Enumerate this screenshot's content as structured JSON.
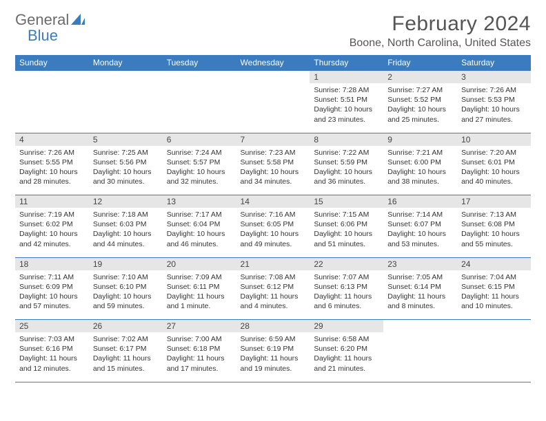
{
  "brand": {
    "part1": "General",
    "part2": "Blue"
  },
  "title": "February 2024",
  "location": "Boone, North Carolina, United States",
  "colors": {
    "header_bg": "#3a7cbf",
    "header_text": "#ffffff",
    "daynum_bg": "#e6e6e6",
    "text": "#333333",
    "title_text": "#555555",
    "border": "#3a7cbf"
  },
  "days_of_week": [
    "Sunday",
    "Monday",
    "Tuesday",
    "Wednesday",
    "Thursday",
    "Friday",
    "Saturday"
  ],
  "weeks": [
    [
      null,
      null,
      null,
      null,
      {
        "n": "1",
        "sunrise": "Sunrise: 7:28 AM",
        "sunset": "Sunset: 5:51 PM",
        "daylight": "Daylight: 10 hours and 23 minutes."
      },
      {
        "n": "2",
        "sunrise": "Sunrise: 7:27 AM",
        "sunset": "Sunset: 5:52 PM",
        "daylight": "Daylight: 10 hours and 25 minutes."
      },
      {
        "n": "3",
        "sunrise": "Sunrise: 7:26 AM",
        "sunset": "Sunset: 5:53 PM",
        "daylight": "Daylight: 10 hours and 27 minutes."
      }
    ],
    [
      {
        "n": "4",
        "sunrise": "Sunrise: 7:26 AM",
        "sunset": "Sunset: 5:55 PM",
        "daylight": "Daylight: 10 hours and 28 minutes."
      },
      {
        "n": "5",
        "sunrise": "Sunrise: 7:25 AM",
        "sunset": "Sunset: 5:56 PM",
        "daylight": "Daylight: 10 hours and 30 minutes."
      },
      {
        "n": "6",
        "sunrise": "Sunrise: 7:24 AM",
        "sunset": "Sunset: 5:57 PM",
        "daylight": "Daylight: 10 hours and 32 minutes."
      },
      {
        "n": "7",
        "sunrise": "Sunrise: 7:23 AM",
        "sunset": "Sunset: 5:58 PM",
        "daylight": "Daylight: 10 hours and 34 minutes."
      },
      {
        "n": "8",
        "sunrise": "Sunrise: 7:22 AM",
        "sunset": "Sunset: 5:59 PM",
        "daylight": "Daylight: 10 hours and 36 minutes."
      },
      {
        "n": "9",
        "sunrise": "Sunrise: 7:21 AM",
        "sunset": "Sunset: 6:00 PM",
        "daylight": "Daylight: 10 hours and 38 minutes."
      },
      {
        "n": "10",
        "sunrise": "Sunrise: 7:20 AM",
        "sunset": "Sunset: 6:01 PM",
        "daylight": "Daylight: 10 hours and 40 minutes."
      }
    ],
    [
      {
        "n": "11",
        "sunrise": "Sunrise: 7:19 AM",
        "sunset": "Sunset: 6:02 PM",
        "daylight": "Daylight: 10 hours and 42 minutes."
      },
      {
        "n": "12",
        "sunrise": "Sunrise: 7:18 AM",
        "sunset": "Sunset: 6:03 PM",
        "daylight": "Daylight: 10 hours and 44 minutes."
      },
      {
        "n": "13",
        "sunrise": "Sunrise: 7:17 AM",
        "sunset": "Sunset: 6:04 PM",
        "daylight": "Daylight: 10 hours and 46 minutes."
      },
      {
        "n": "14",
        "sunrise": "Sunrise: 7:16 AM",
        "sunset": "Sunset: 6:05 PM",
        "daylight": "Daylight: 10 hours and 49 minutes."
      },
      {
        "n": "15",
        "sunrise": "Sunrise: 7:15 AM",
        "sunset": "Sunset: 6:06 PM",
        "daylight": "Daylight: 10 hours and 51 minutes."
      },
      {
        "n": "16",
        "sunrise": "Sunrise: 7:14 AM",
        "sunset": "Sunset: 6:07 PM",
        "daylight": "Daylight: 10 hours and 53 minutes."
      },
      {
        "n": "17",
        "sunrise": "Sunrise: 7:13 AM",
        "sunset": "Sunset: 6:08 PM",
        "daylight": "Daylight: 10 hours and 55 minutes."
      }
    ],
    [
      {
        "n": "18",
        "sunrise": "Sunrise: 7:11 AM",
        "sunset": "Sunset: 6:09 PM",
        "daylight": "Daylight: 10 hours and 57 minutes."
      },
      {
        "n": "19",
        "sunrise": "Sunrise: 7:10 AM",
        "sunset": "Sunset: 6:10 PM",
        "daylight": "Daylight: 10 hours and 59 minutes."
      },
      {
        "n": "20",
        "sunrise": "Sunrise: 7:09 AM",
        "sunset": "Sunset: 6:11 PM",
        "daylight": "Daylight: 11 hours and 1 minute."
      },
      {
        "n": "21",
        "sunrise": "Sunrise: 7:08 AM",
        "sunset": "Sunset: 6:12 PM",
        "daylight": "Daylight: 11 hours and 4 minutes."
      },
      {
        "n": "22",
        "sunrise": "Sunrise: 7:07 AM",
        "sunset": "Sunset: 6:13 PM",
        "daylight": "Daylight: 11 hours and 6 minutes."
      },
      {
        "n": "23",
        "sunrise": "Sunrise: 7:05 AM",
        "sunset": "Sunset: 6:14 PM",
        "daylight": "Daylight: 11 hours and 8 minutes."
      },
      {
        "n": "24",
        "sunrise": "Sunrise: 7:04 AM",
        "sunset": "Sunset: 6:15 PM",
        "daylight": "Daylight: 11 hours and 10 minutes."
      }
    ],
    [
      {
        "n": "25",
        "sunrise": "Sunrise: 7:03 AM",
        "sunset": "Sunset: 6:16 PM",
        "daylight": "Daylight: 11 hours and 12 minutes."
      },
      {
        "n": "26",
        "sunrise": "Sunrise: 7:02 AM",
        "sunset": "Sunset: 6:17 PM",
        "daylight": "Daylight: 11 hours and 15 minutes."
      },
      {
        "n": "27",
        "sunrise": "Sunrise: 7:00 AM",
        "sunset": "Sunset: 6:18 PM",
        "daylight": "Daylight: 11 hours and 17 minutes."
      },
      {
        "n": "28",
        "sunrise": "Sunrise: 6:59 AM",
        "sunset": "Sunset: 6:19 PM",
        "daylight": "Daylight: 11 hours and 19 minutes."
      },
      {
        "n": "29",
        "sunrise": "Sunrise: 6:58 AM",
        "sunset": "Sunset: 6:20 PM",
        "daylight": "Daylight: 11 hours and 21 minutes."
      },
      null,
      null
    ]
  ]
}
